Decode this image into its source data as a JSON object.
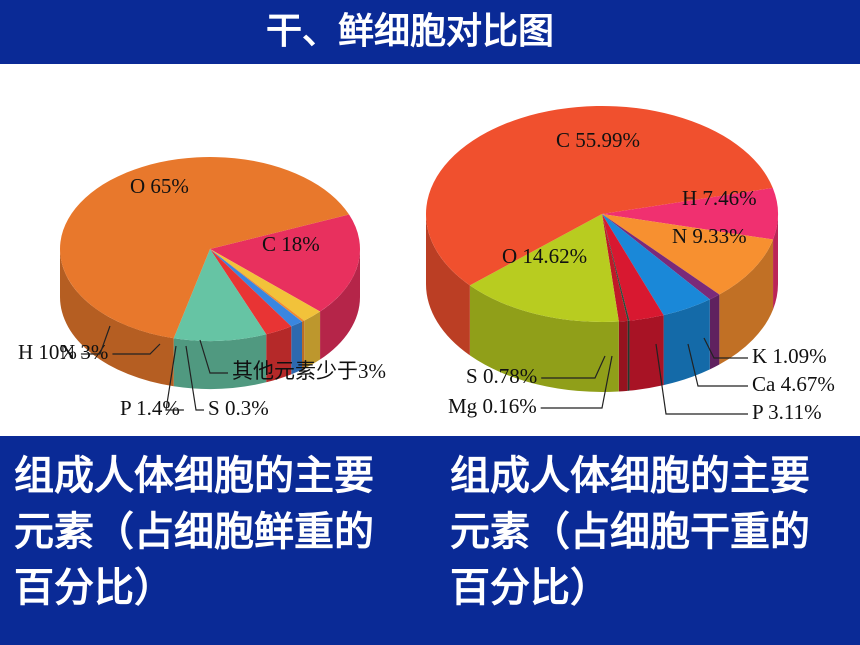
{
  "title": "干、鲜细胞对比图",
  "chart_data": [
    {
      "type": "pie",
      "caption": "组成人体细胞的主要元素（占细胞鲜重的百分比）",
      "categories": [
        "C",
        "其他元素少于3%",
        "S",
        "P",
        "N",
        "H",
        "O"
      ],
      "values": [
        18,
        2.3,
        0.3,
        1.4,
        3,
        10,
        65
      ],
      "value_labels": [
        "18%",
        null,
        "0.3%",
        "1.4%",
        "3%",
        "10%",
        "65%"
      ],
      "colors": [
        "#e8305e",
        "#f2c23a",
        "#f08a30",
        "#3a86e0",
        "#e83434",
        "#66c4a4",
        "#e8782c"
      ]
    },
    {
      "type": "pie",
      "caption": "组成人体细胞的主要元素（占细胞干重的百分比）",
      "categories": [
        "H",
        "N",
        "K",
        "Ca",
        "P",
        "Mg",
        "S",
        "O",
        "C"
      ],
      "values": [
        7.46,
        9.33,
        1.09,
        4.67,
        3.11,
        0.16,
        0.78,
        14.62,
        55.99
      ],
      "value_labels": [
        "7.46%",
        "9.33%",
        "1.09%",
        "4.67%",
        "3.11%",
        "0.16%",
        "0.78%",
        "14.62%",
        "55.99%"
      ],
      "colors": [
        "#f03070",
        "#f79030",
        "#7a2a7a",
        "#1a88d8",
        "#d81830",
        "#2a4a3a",
        "#c01828",
        "#b8cc20",
        "#f0502e"
      ]
    }
  ]
}
